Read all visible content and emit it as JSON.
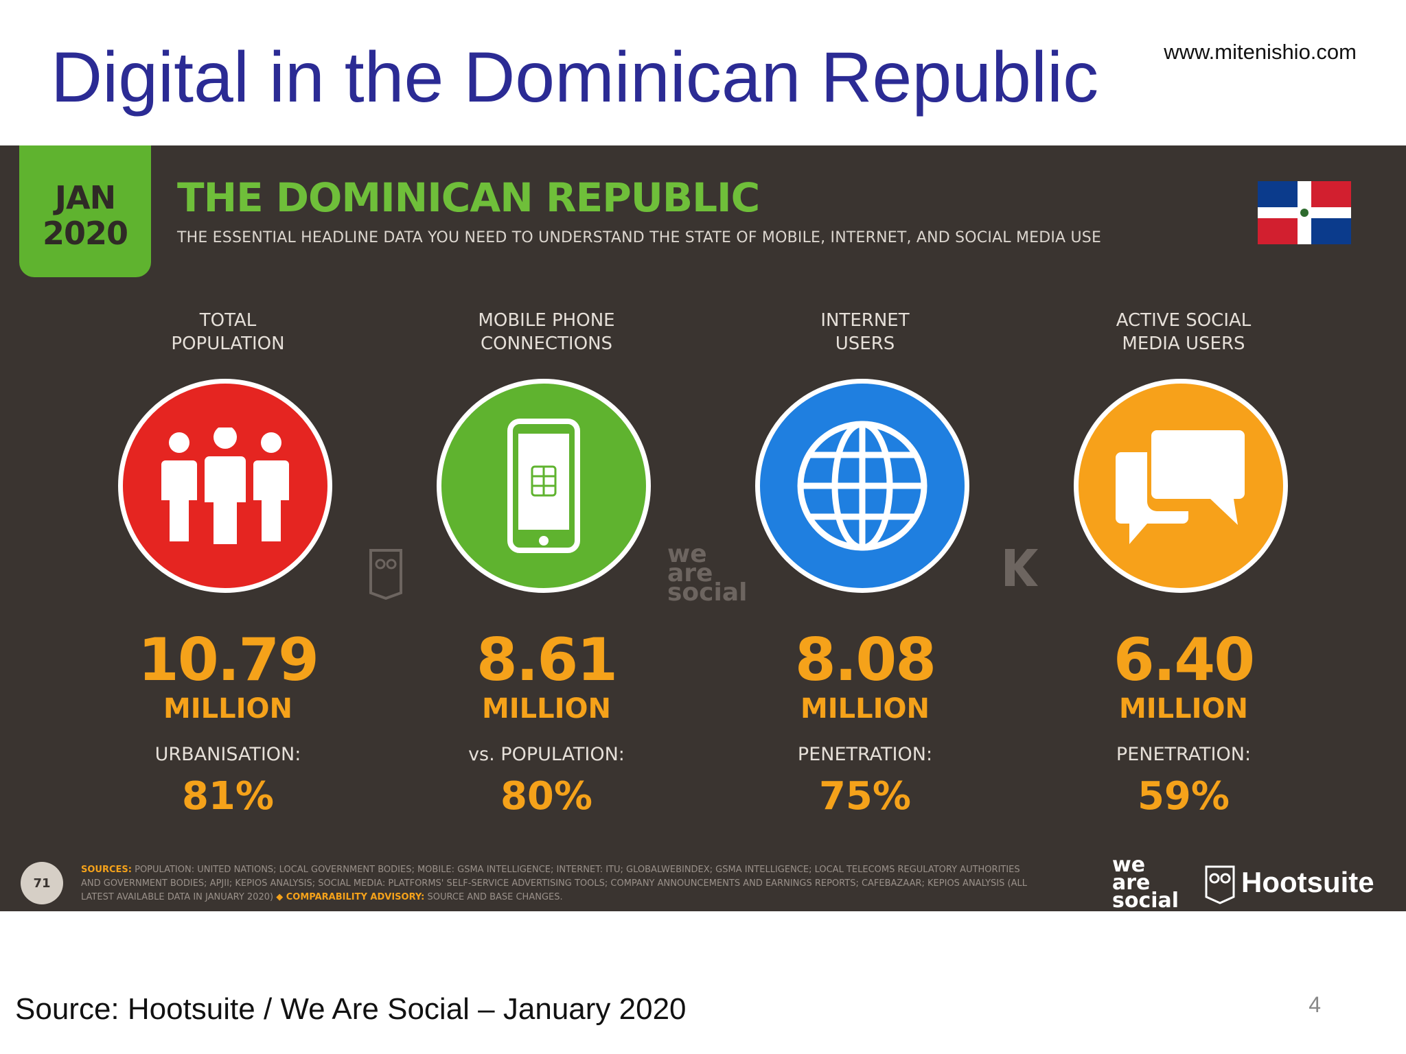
{
  "slide": {
    "title": "Digital in the Dominican Republic",
    "url": "www.mitenishio.com",
    "source": "Source: Hootsuite / We Are Social – January 2020",
    "page_number": "4"
  },
  "panel": {
    "date_month": "JAN",
    "date_year": "2020",
    "title": "THE DOMINICAN REPUBLIC",
    "subtitle": "THE ESSENTIAL HEADLINE DATA YOU NEED TO UNDERSTAND THE STATE OF MOBILE, INTERNET, AND SOCIAL MEDIA USE",
    "colors": {
      "background": "#3a3430",
      "accent_green": "#5fb32f",
      "accent_orange": "#f5a21a"
    },
    "stats": [
      {
        "label_line1": "TOTAL",
        "label_line2": "POPULATION",
        "icon": "people-icon",
        "circle_color": "#e52521",
        "value": "10.79",
        "unit": "MILLION",
        "sublabel": "URBANISATION:",
        "subvalue": "81%"
      },
      {
        "label_line1": "MOBILE PHONE",
        "label_line2": "CONNECTIONS",
        "icon": "mobile-phone-icon",
        "circle_color": "#5fb32f",
        "value": "8.61",
        "unit": "MILLION",
        "sublabel": "vs. POPULATION:",
        "subvalue": "80%"
      },
      {
        "label_line1": "INTERNET",
        "label_line2": "USERS",
        "icon": "globe-icon",
        "circle_color": "#1f7fe0",
        "value": "8.08",
        "unit": "MILLION",
        "sublabel": "PENETRATION:",
        "subvalue": "75%"
      },
      {
        "label_line1": "ACTIVE SOCIAL",
        "label_line2": "MEDIA USERS",
        "icon": "chat-bubbles-icon",
        "circle_color": "#f7a11a",
        "value": "6.40",
        "unit": "MILLION",
        "sublabel": "PENETRATION:",
        "subvalue": "59%"
      }
    ],
    "watermark_was": "we are social",
    "footer": {
      "page": "71",
      "sources_label": "SOURCES:",
      "sources_text": "POPULATION: UNITED NATIONS; LOCAL GOVERNMENT BODIES; MOBILE: GSMA INTELLIGENCE; INTERNET: ITU; GLOBALWEBINDEX; GSMA INTELLIGENCE; LOCAL TELECOMS REGULATORY AUTHORITIES AND GOVERNMENT BODIES; APJII; KEPIOS ANALYSIS; SOCIAL MEDIA: PLATFORMS' SELF-SERVICE ADVERTISING TOOLS; COMPANY ANNOUNCEMENTS AND EARNINGS REPORTS; CAFEBAZAAR; KEPIOS ANALYSIS (ALL LATEST AVAILABLE DATA IN JANUARY 2020)",
      "advisory_label": "◆ COMPARABILITY ADVISORY:",
      "advisory_text": "SOURCE AND BASE CHANGES."
    },
    "logo_was": "we are social",
    "logo_hootsuite": "Hootsuite"
  }
}
